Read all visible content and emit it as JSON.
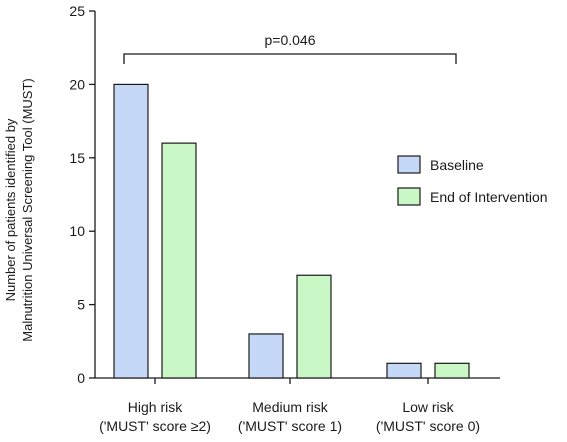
{
  "chart_data": {
    "type": "bar",
    "ylabel_line1": "Number of patients identified by",
    "ylabel_line2": "Malnutrition Universal Screening Tool (MUST)",
    "categories": [
      [
        "High risk",
        "('MUST' score ≥2)"
      ],
      [
        "Medium risk",
        "('MUST' score 1)"
      ],
      [
        "Low risk",
        "('MUST' score 0)"
      ]
    ],
    "series": [
      {
        "name": "Baseline",
        "values": [
          20,
          3,
          1
        ],
        "color": "#c5d8f7"
      },
      {
        "name": "End of Intervention",
        "values": [
          16,
          7,
          1
        ],
        "color": "#c9f7c5"
      }
    ],
    "ylim": [
      0,
      25
    ],
    "yticks": [
      0,
      5,
      10,
      15,
      20,
      25
    ],
    "annotation": "p=0.046",
    "legend_position": "right",
    "grid": false,
    "bar_outline": "#1a1a1a"
  }
}
